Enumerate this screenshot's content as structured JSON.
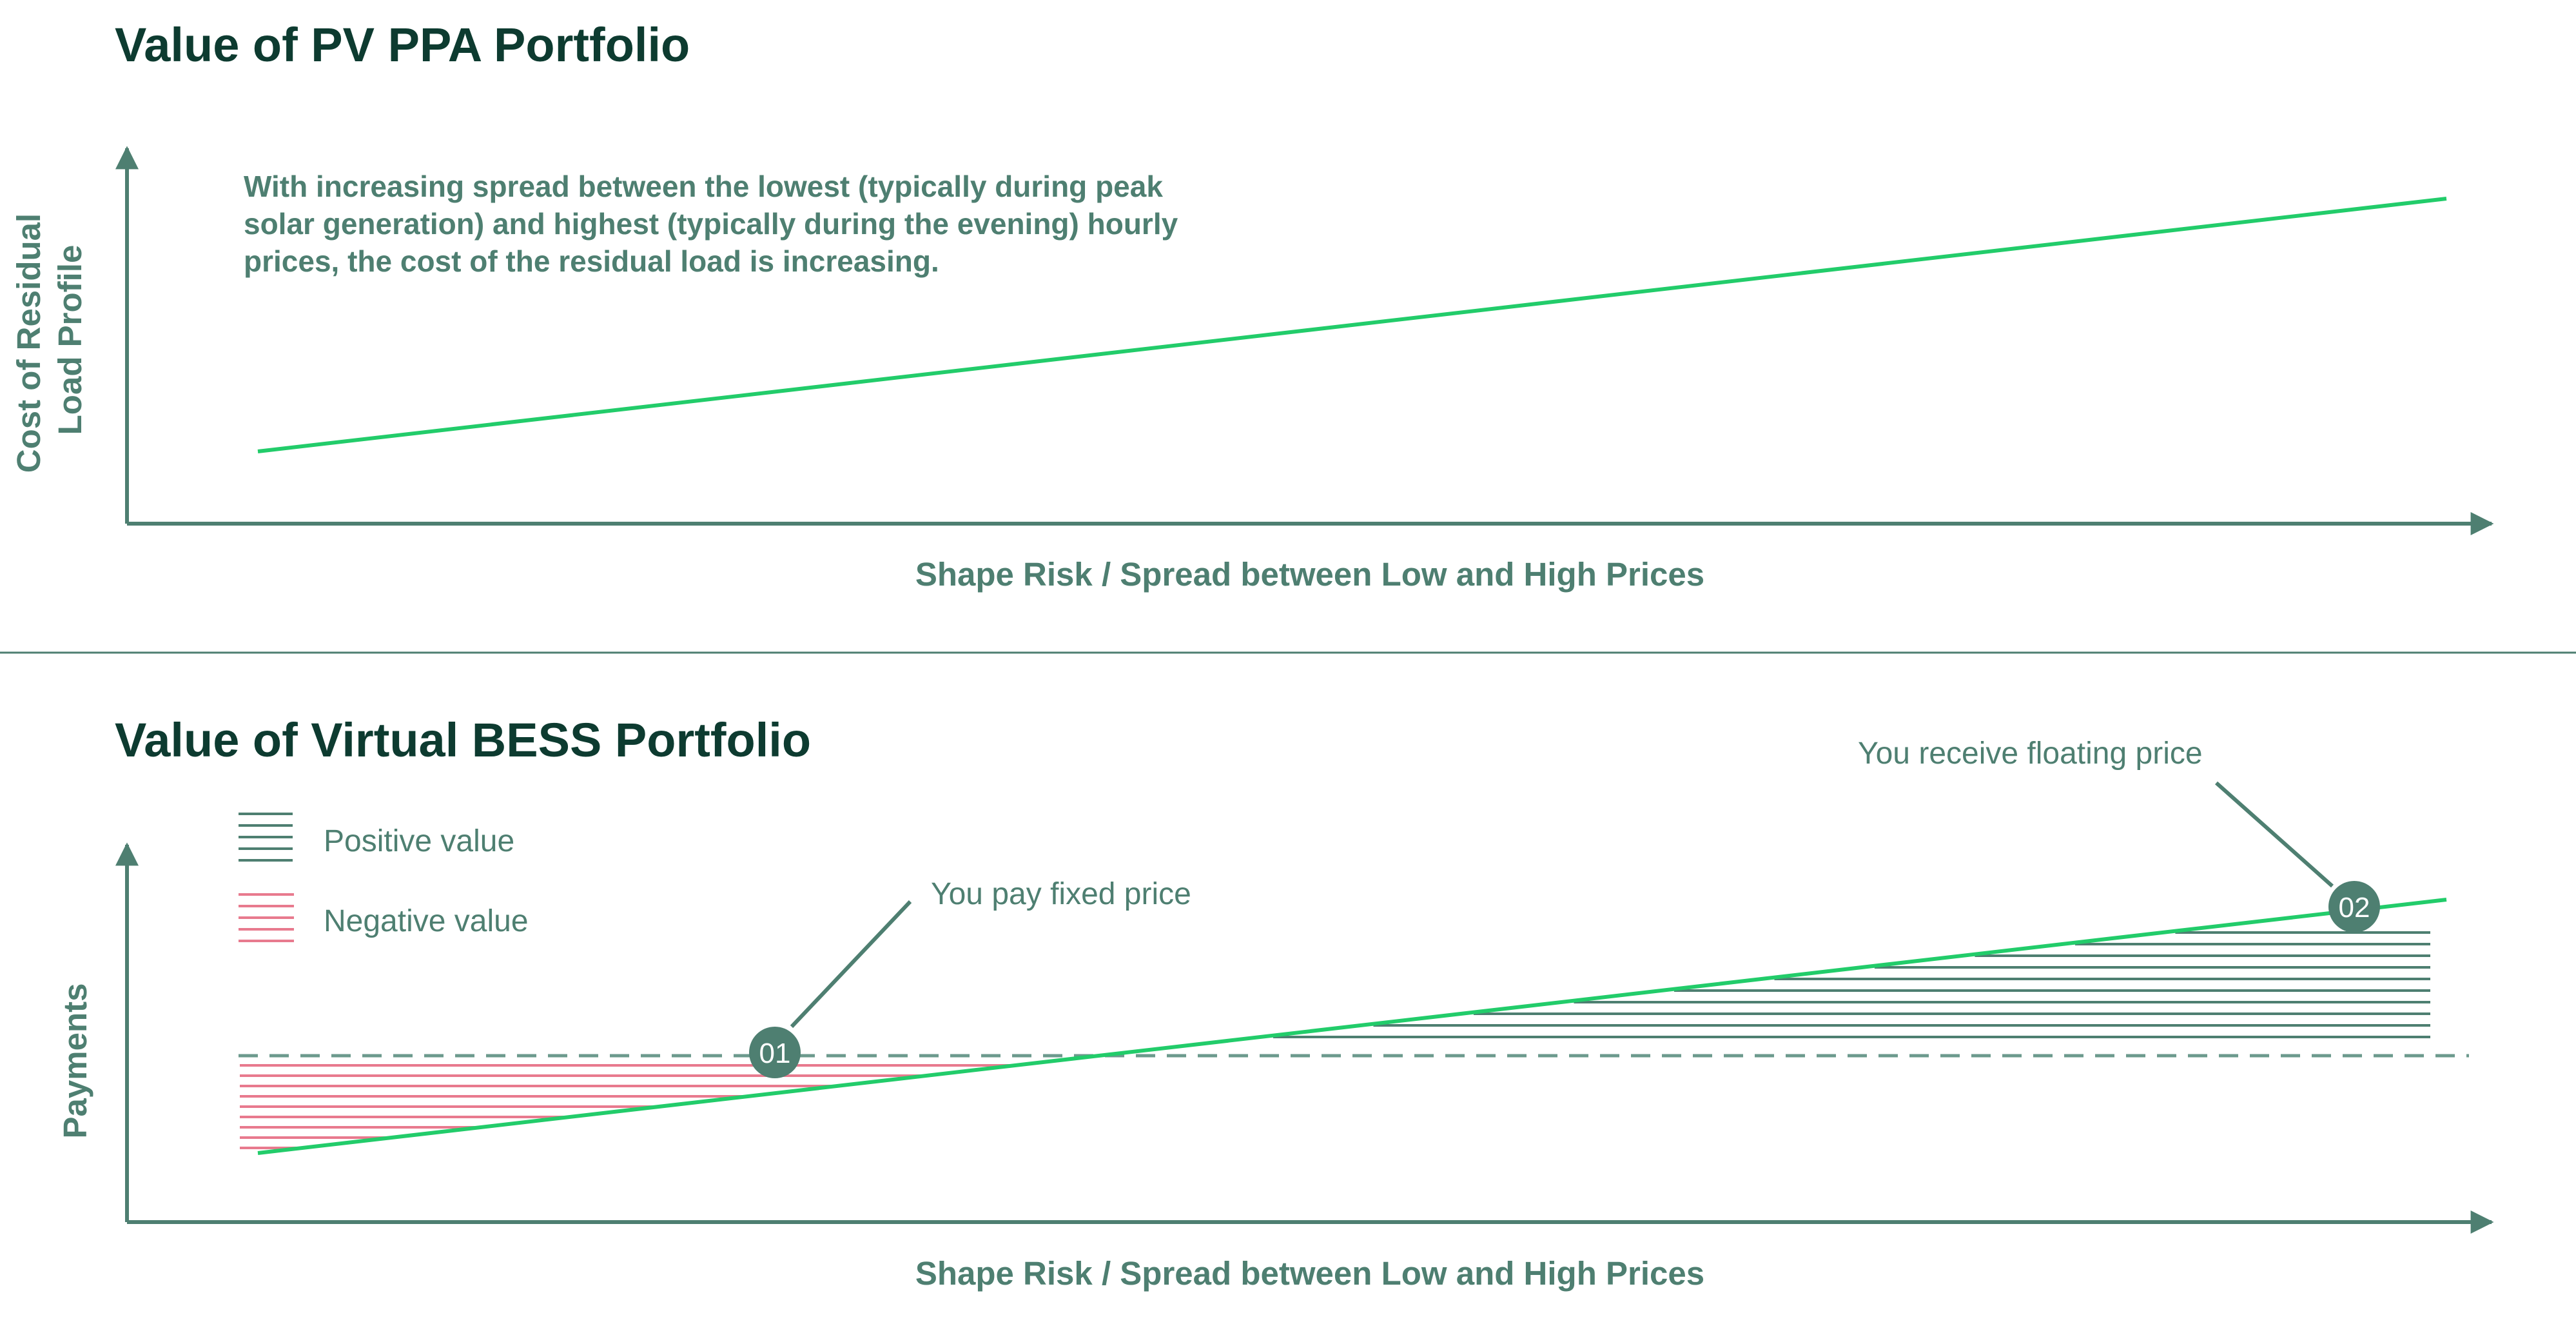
{
  "colors": {
    "title": "#0d3b30",
    "text": "#4e7f71",
    "axis": "#4e7f71",
    "line": "#22cc6a",
    "positive": "#4e7f71",
    "negative": "#e87a8e",
    "badge": "#4e7f71",
    "divider": "#4e7f71"
  },
  "top_panel": {
    "title": "Value of PV PPA Portfolio",
    "y_label_line1": "Cost of Residual",
    "y_label_line2": "Load Profile",
    "x_label": "Shape Risk / Spread between Low and High Prices",
    "note_lines": [
      "With increasing spread between the lowest (typically during peak",
      "solar generation) and highest (typically during the evening) hourly",
      "prices, the cost of the residual load is increasing."
    ],
    "trend": "rising straight line"
  },
  "bottom_panel": {
    "title": "Value of Virtual BESS Portfolio",
    "y_label": "Payments",
    "x_label": "Shape Risk / Spread between Low and High Prices",
    "legend": {
      "positive": "Positive value",
      "negative": "Negative value"
    },
    "callouts": {
      "fixed": {
        "badge": "01",
        "text": "You pay fixed price"
      },
      "floating": {
        "badge": "02",
        "text": "You receive floating price"
      }
    },
    "reference_line": "dashed fixed price level",
    "trend": "rising floating price line crossing the fixed price"
  }
}
